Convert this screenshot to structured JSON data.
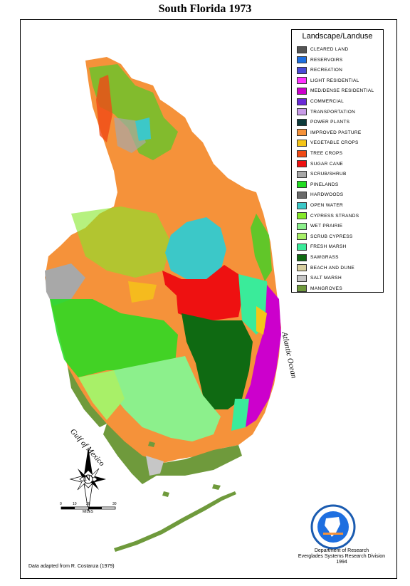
{
  "title": "South Florida 1973",
  "legend": {
    "title": "Landscape/Landuse",
    "items": [
      {
        "label": "CLEARED LAND",
        "color": "#555555"
      },
      {
        "label": "RESERVOIRS",
        "color": "#1e6fe0"
      },
      {
        "label": "RECREATION",
        "color": "#4a4ad6"
      },
      {
        "label": "LIGHT RESIDENTIAL",
        "color": "#ff33ff"
      },
      {
        "label": "MED/DENSE RESIDENTIAL",
        "color": "#cc00cc"
      },
      {
        "label": "COMMERCIAL",
        "color": "#6a2ad8"
      },
      {
        "label": "TRANSPORTATION",
        "color": "#c99ce8"
      },
      {
        "label": "POWER PLANTS",
        "color": "#0d3b3b"
      },
      {
        "label": "IMPROVED PASTURE",
        "color": "#f5923a"
      },
      {
        "label": "VEGETABLE CROPS",
        "color": "#f5c518"
      },
      {
        "label": "TREE CROPS",
        "color": "#f04a16"
      },
      {
        "label": "SUGAR CANE",
        "color": "#ee1111"
      },
      {
        "label": "SCRUB/SHRUB",
        "color": "#a8a8a8"
      },
      {
        "label": "PINELANDS",
        "color": "#22dd22"
      },
      {
        "label": "HARDWOODS",
        "color": "#6a6a6a"
      },
      {
        "label": "OPEN WATER",
        "color": "#3cc8c8"
      },
      {
        "label": "CYPRESS STRANDS",
        "color": "#86e82a"
      },
      {
        "label": "WET PRAIRIE",
        "color": "#8cf08c"
      },
      {
        "label": "SCRUB CYPRESS",
        "color": "#a8f068"
      },
      {
        "label": "FRESH MARSH",
        "color": "#3aeb9a"
      },
      {
        "label": "SAWGRASS",
        "color": "#0f6a12"
      },
      {
        "label": "BEACH AND DUNE",
        "color": "#d8cfa0"
      },
      {
        "label": "SALT MARSH",
        "color": "#c6c6c6"
      },
      {
        "label": "MANGROVES",
        "color": "#6f9a3c"
      }
    ]
  },
  "labels": {
    "gulf": "Gulf of Mexico",
    "atlantic": "Atlantic Ocean",
    "north": "N",
    "scale_miles": "MILES",
    "scale_ticks": [
      "0",
      "10",
      "20",
      "30"
    ]
  },
  "credit": "Data adapted from R. Costanza (1979)",
  "department": {
    "line1": "Department of Research",
    "line2": "Everglades Systems Research Division",
    "line3": "1994"
  }
}
